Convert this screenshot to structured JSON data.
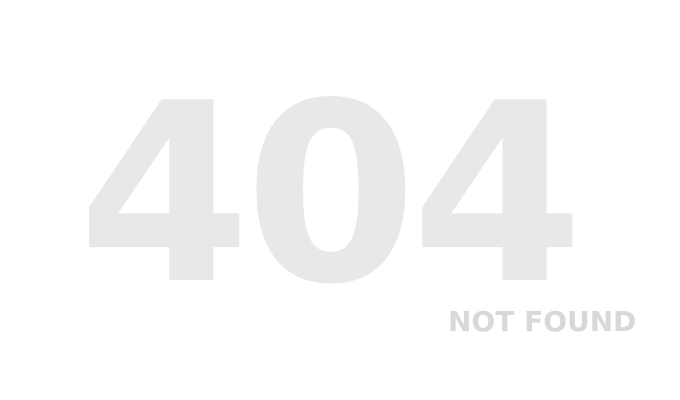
{
  "error": {
    "code": "404",
    "message": "NOT FOUND"
  },
  "colors": {
    "background": "#ffffff",
    "code_text": "#e8e8e8",
    "message_text": "#d8d8d8"
  }
}
